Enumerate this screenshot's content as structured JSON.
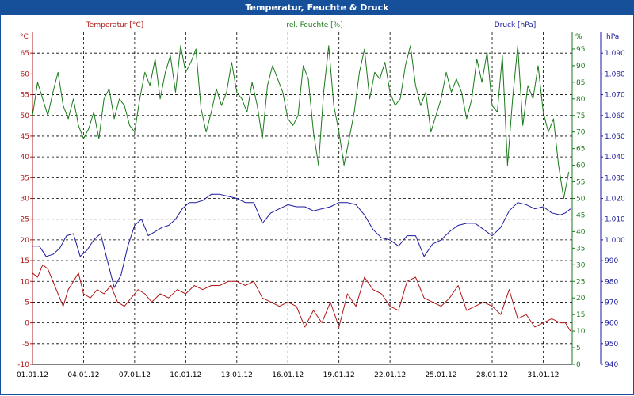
{
  "window": {
    "title": "Temperatur, Feuchte & Druck"
  },
  "chart_data": {
    "type": "line",
    "title": "Temperatur, Feuchte & Druck",
    "grid": true,
    "x_ticks": [
      "01.01.12",
      "04.01.12",
      "07.01.12",
      "10.01.12",
      "13.01.12",
      "16.01.12",
      "19.01.12",
      "22.01.12",
      "25.01.12",
      "28.01.12",
      "31.01.12"
    ],
    "x_range_days": [
      0,
      31.7
    ],
    "axes": {
      "temperature": {
        "unit": "°C",
        "min": -10,
        "max": 70,
        "ticks": [
          "65",
          "60",
          "55",
          "50",
          "45",
          "40",
          "35",
          "30",
          "25",
          "20",
          "15",
          "10",
          "5",
          "0",
          "-5",
          "-10"
        ]
      },
      "humidity": {
        "unit": "%",
        "min": 0,
        "max": 100,
        "ticks": [
          "95",
          "90",
          "85",
          "80",
          "75",
          "70",
          "65",
          "60",
          "55",
          "50",
          "45",
          "40",
          "35",
          "30",
          "25",
          "20",
          "15",
          "10",
          "5",
          "0"
        ]
      },
      "pressure": {
        "unit": "hPa",
        "min": 940,
        "max": 1100,
        "ticks": [
          "1.090",
          "1.080",
          "1.070",
          "1.060",
          "1.050",
          "1.040",
          "1.030",
          "1.020",
          "1.010",
          "1.000",
          "990",
          "980",
          "970",
          "960",
          "950",
          "940"
        ]
      }
    },
    "series": [
      {
        "name": "Temperatur [°C]",
        "axis": "temperature",
        "color": "#b01818",
        "x": [
          0,
          0.3,
          0.6,
          0.9,
          1.2,
          1.5,
          1.8,
          2.1,
          2.4,
          2.7,
          3.0,
          3.4,
          3.8,
          4.2,
          4.6,
          5.0,
          5.4,
          5.8,
          6.2,
          6.6,
          7.0,
          7.5,
          8.0,
          8.5,
          9.0,
          9.5,
          10.0,
          10.5,
          11.0,
          11.5,
          12.0,
          12.5,
          13.0,
          13.5,
          14.0,
          14.5,
          15.0,
          15.5,
          16.0,
          16.5,
          17.0,
          17.5,
          18.0,
          18.5,
          19.0,
          19.5,
          20.0,
          20.5,
          21.0,
          21.5,
          22.0,
          22.5,
          23.0,
          23.5,
          24.0,
          24.5,
          25.0,
          25.5,
          26.0,
          26.5,
          27.0,
          27.5,
          28.0,
          28.5,
          29.0,
          29.5,
          30.0,
          30.5,
          31.0,
          31.3,
          31.6
        ],
        "y": [
          12,
          11,
          14,
          13,
          10,
          7,
          4,
          8,
          10,
          12,
          7,
          6,
          8,
          7,
          9,
          5,
          4,
          6,
          8,
          7,
          5,
          7,
          6,
          8,
          7,
          9,
          8,
          9,
          9,
          10,
          10,
          9,
          10,
          6,
          5,
          4,
          5,
          4,
          -1,
          3,
          0,
          5,
          -1,
          7,
          4,
          11,
          8,
          7,
          4,
          3,
          10,
          11,
          6,
          5,
          4,
          6,
          9,
          3,
          4,
          5,
          4,
          2,
          8,
          1,
          2,
          -1,
          0,
          1,
          0,
          0,
          -2
        ]
      },
      {
        "name": "rel. Feuchte [%]",
        "axis": "humidity",
        "color": "#1a7a1a",
        "x": [
          0,
          0.3,
          0.6,
          0.9,
          1.2,
          1.5,
          1.8,
          2.1,
          2.4,
          2.7,
          3.0,
          3.3,
          3.6,
          3.9,
          4.2,
          4.5,
          4.8,
          5.1,
          5.4,
          5.7,
          6.0,
          6.3,
          6.6,
          6.9,
          7.2,
          7.5,
          7.8,
          8.1,
          8.4,
          8.7,
          9.0,
          9.3,
          9.6,
          9.9,
          10.2,
          10.5,
          10.8,
          11.1,
          11.4,
          11.7,
          12.0,
          12.3,
          12.6,
          12.9,
          13.2,
          13.5,
          13.8,
          14.1,
          14.4,
          14.7,
          15.0,
          15.3,
          15.6,
          15.9,
          16.2,
          16.5,
          16.8,
          17.1,
          17.4,
          17.7,
          18.0,
          18.3,
          18.6,
          18.9,
          19.2,
          19.5,
          19.8,
          20.1,
          20.4,
          20.7,
          21.0,
          21.3,
          21.6,
          21.9,
          22.2,
          22.5,
          22.8,
          23.1,
          23.4,
          23.7,
          24.0,
          24.3,
          24.6,
          24.9,
          25.2,
          25.5,
          25.8,
          26.1,
          26.4,
          26.7,
          27.0,
          27.3,
          27.6,
          27.9,
          28.2,
          28.5,
          28.8,
          29.1,
          29.4,
          29.7,
          30.0,
          30.3,
          30.6,
          30.9,
          31.2,
          31.5
        ],
        "y": [
          75,
          85,
          80,
          75,
          82,
          88,
          78,
          74,
          80,
          72,
          68,
          71,
          76,
          68,
          80,
          83,
          74,
          80,
          78,
          72,
          70,
          80,
          88,
          84,
          92,
          80,
          88,
          93,
          82,
          96,
          88,
          91,
          95,
          77,
          70,
          76,
          83,
          78,
          82,
          91,
          82,
          80,
          76,
          85,
          78,
          68,
          84,
          90,
          86,
          82,
          74,
          72,
          75,
          90,
          86,
          70,
          60,
          82,
          96,
          78,
          70,
          60,
          68,
          76,
          88,
          95,
          80,
          88,
          86,
          91,
          82,
          78,
          80,
          90,
          96,
          84,
          78,
          82,
          70,
          75,
          80,
          88,
          82,
          86,
          82,
          74,
          80,
          92,
          85,
          94,
          78,
          76,
          93,
          60,
          80,
          96,
          72,
          84,
          80,
          90,
          76,
          70,
          74,
          60,
          50,
          58
        ]
      },
      {
        "name": "Druck [hPa]",
        "axis": "pressure",
        "color": "#1a1a9e",
        "x": [
          0,
          0.4,
          0.8,
          1.2,
          1.6,
          2.0,
          2.4,
          2.8,
          3.2,
          3.6,
          4.0,
          4.4,
          4.8,
          5.2,
          5.6,
          6.0,
          6.4,
          6.8,
          7.2,
          7.6,
          8.0,
          8.4,
          8.8,
          9.2,
          9.6,
          10.0,
          10.5,
          11.0,
          11.5,
          12.0,
          12.5,
          13.0,
          13.5,
          14.0,
          14.5,
          15.0,
          15.5,
          16.0,
          16.5,
          17.0,
          17.5,
          18.0,
          18.5,
          19.0,
          19.5,
          20.0,
          20.5,
          21.0,
          21.5,
          22.0,
          22.5,
          23.0,
          23.5,
          24.0,
          24.5,
          25.0,
          25.5,
          26.0,
          26.5,
          27.0,
          27.5,
          28.0,
          28.5,
          29.0,
          29.5,
          30.0,
          30.5,
          31.0,
          31.3,
          31.6
        ],
        "y": [
          997,
          997,
          992,
          993,
          996,
          1002,
          1003,
          992,
          995,
          1000,
          1003,
          990,
          977,
          983,
          997,
          1007,
          1010,
          1002,
          1004,
          1006,
          1007,
          1010,
          1015,
          1018,
          1018,
          1019,
          1022,
          1022,
          1021,
          1020,
          1018,
          1018,
          1008,
          1013,
          1015,
          1017,
          1016,
          1016,
          1014,
          1015,
          1016,
          1018,
          1018,
          1017,
          1012,
          1005,
          1001,
          1000,
          997,
          1002,
          1002,
          992,
          998,
          1000,
          1004,
          1007,
          1008,
          1008,
          1005,
          1002,
          1006,
          1014,
          1018,
          1017,
          1015,
          1016,
          1013,
          1012,
          1013,
          1015
        ]
      }
    ]
  }
}
